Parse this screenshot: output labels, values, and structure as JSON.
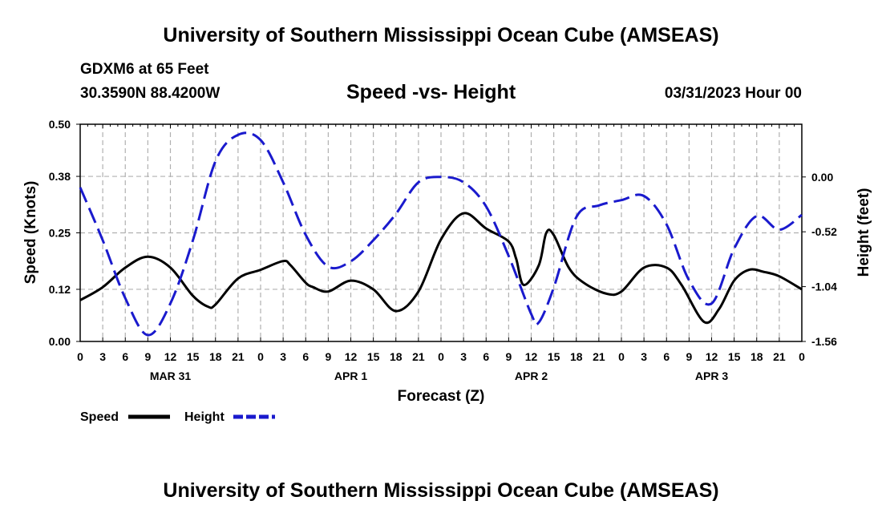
{
  "header": {
    "title": "University of Southern Mississippi Ocean Cube (AMSEAS)",
    "station": "GDXM6 at 65 Feet",
    "coordinates": "30.3590N  88.4200W",
    "subtitle": "Speed -vs- Height",
    "datetime": "03/31/2023 Hour 00"
  },
  "footer": {
    "title": "University of Southern Mississippi Ocean Cube (AMSEAS)"
  },
  "colors": {
    "speed": "#000000",
    "height": "#1a1acd",
    "grid": "#b0b0b0"
  },
  "chart_data": {
    "type": "line",
    "title": "Speed -vs- Height",
    "xlabel": "Forecast (Z)",
    "ylabel": "Speed (Knots)",
    "y2label": "Height (feet)",
    "xlim": [
      0,
      96
    ],
    "ylim": [
      0,
      0.5
    ],
    "y2lim": [
      -1.56,
      0.5
    ],
    "y_ticks": [
      "0.00",
      "0.12",
      "0.25",
      "0.38",
      "0.50"
    ],
    "y2_ticks": [
      "-1.56",
      "-1.04",
      "-0.52",
      "0.00"
    ],
    "x_tick_labels": [
      "0",
      "3",
      "6",
      "9",
      "12",
      "15",
      "18",
      "21",
      "0",
      "3",
      "6",
      "9",
      "12",
      "15",
      "18",
      "21",
      "0",
      "3",
      "6",
      "9",
      "12",
      "15",
      "18",
      "21",
      "0",
      "3",
      "6",
      "9",
      "12",
      "15",
      "18",
      "21",
      "0"
    ],
    "day_labels": [
      {
        "label": "MAR 31",
        "hour": 12
      },
      {
        "label": "APR 1",
        "hour": 36
      },
      {
        "label": "APR 2",
        "hour": 60
      },
      {
        "label": "APR 3",
        "hour": 84
      }
    ],
    "grid": true,
    "legend_position": "bottom-left",
    "series": [
      {
        "name": "Speed",
        "axis": "left",
        "style": "solid",
        "x": [
          0,
          3,
          6,
          9,
          12,
          15,
          17,
          18,
          21,
          24,
          27,
          28,
          30,
          31,
          33,
          36,
          39,
          42,
          45,
          48,
          51,
          54,
          57,
          58,
          59,
          61,
          62,
          63,
          65,
          67,
          70,
          72,
          75,
          78,
          80,
          83,
          85,
          87,
          89,
          91,
          93,
          96
        ],
        "y": [
          0.095,
          0.125,
          0.17,
          0.195,
          0.17,
          0.105,
          0.08,
          0.085,
          0.145,
          0.165,
          0.185,
          0.175,
          0.135,
          0.125,
          0.115,
          0.14,
          0.12,
          0.07,
          0.115,
          0.235,
          0.295,
          0.26,
          0.23,
          0.19,
          0.13,
          0.175,
          0.25,
          0.245,
          0.17,
          0.135,
          0.11,
          0.115,
          0.17,
          0.17,
          0.13,
          0.045,
          0.075,
          0.14,
          0.165,
          0.16,
          0.15,
          0.12
        ]
      },
      {
        "name": "Height",
        "axis": "right",
        "style": "dashed",
        "x": [
          0,
          3,
          6,
          9,
          12,
          15,
          18,
          21,
          24,
          27,
          30,
          33,
          36,
          39,
          42,
          45,
          48,
          51,
          54,
          57,
          60,
          61,
          63,
          66,
          69,
          72,
          75,
          78,
          81,
          84,
          87,
          90,
          93,
          96
        ],
        "y": [
          -0.1,
          -0.6,
          -1.15,
          -1.5,
          -1.2,
          -0.6,
          0.15,
          0.4,
          0.35,
          -0.05,
          -0.55,
          -0.85,
          -0.8,
          -0.6,
          -0.35,
          -0.05,
          0.0,
          -0.05,
          -0.28,
          -0.75,
          -1.3,
          -1.38,
          -1.05,
          -0.38,
          -0.27,
          -0.22,
          -0.18,
          -0.45,
          -0.98,
          -1.2,
          -0.68,
          -0.37,
          -0.5,
          -0.36
        ]
      }
    ]
  },
  "legend": {
    "speed_label": "Speed",
    "height_label": "Height"
  }
}
